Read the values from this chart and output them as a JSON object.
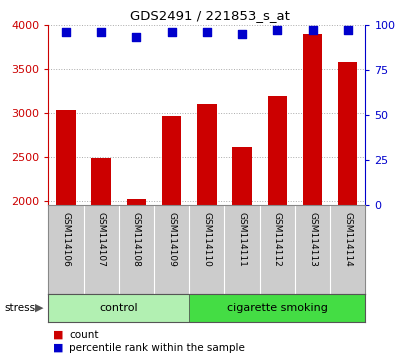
{
  "title": "GDS2491 / 221853_s_at",
  "samples": [
    "GSM114106",
    "GSM114107",
    "GSM114108",
    "GSM114109",
    "GSM114110",
    "GSM114111",
    "GSM114112",
    "GSM114113",
    "GSM114114"
  ],
  "counts": [
    3030,
    2490,
    2020,
    2960,
    3100,
    2610,
    3190,
    3900,
    3580
  ],
  "percentiles": [
    96,
    96,
    93,
    96,
    96,
    95,
    97,
    97,
    97
  ],
  "groups": [
    {
      "label": "control",
      "start": 0,
      "end": 4,
      "color": "#b2f0b2"
    },
    {
      "label": "cigarette smoking",
      "start": 4,
      "end": 9,
      "color": "#44dd44"
    }
  ],
  "stress_label": "stress",
  "ylim_left": [
    1950,
    4000
  ],
  "ylim_right": [
    0,
    100
  ],
  "yticks_left": [
    2000,
    2500,
    3000,
    3500,
    4000
  ],
  "yticks_right": [
    0,
    25,
    50,
    75,
    100
  ],
  "bar_color": "#cc0000",
  "dot_color": "#0000cc",
  "bg_color": "#ffffff",
  "tick_color_left": "#cc0000",
  "tick_color_right": "#0000cc",
  "legend_count_color": "#cc0000",
  "legend_pct_color": "#0000cc",
  "grid_color": "#aaaaaa",
  "bar_width": 0.55,
  "dot_size": 30,
  "label_box_color": "#cccccc",
  "label_box_border": "#888888"
}
